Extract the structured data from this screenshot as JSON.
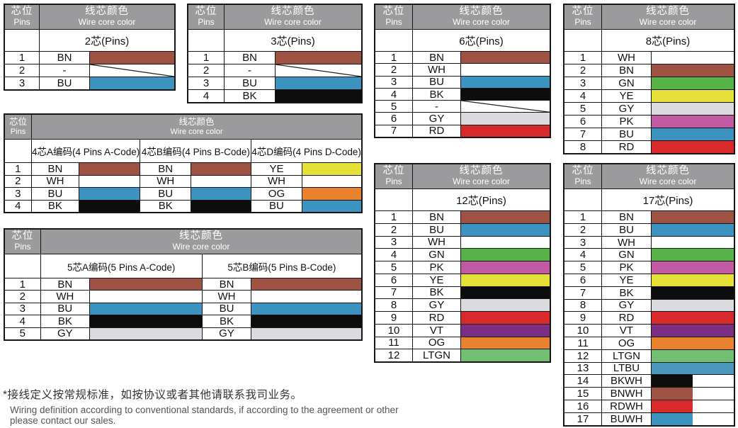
{
  "labels": {
    "pins_zh": "芯位",
    "pins_en": "Pins",
    "color_zh": "线芯颜色",
    "color_en": "Wire core color"
  },
  "palette": {
    "BN": "#9E5244",
    "WH": "#FFFFFF",
    "BU": "#3D93BF",
    "BK": "#0D0D0D",
    "GY": "#DBDADF",
    "RD": "#D8292B",
    "GN": "#57B247",
    "YE": "#E5E139",
    "PK": "#C159A3",
    "VT": "#7B2E82",
    "OG": "#E8822F",
    "LTGN": "#72BE72",
    "LTBU": "#4C98BC",
    "header_gray": "#9B9A9C",
    "border": "#161616"
  },
  "tables": [
    {
      "id": "2pin",
      "subheader": "2芯(Pins)",
      "rows": [
        {
          "pin": "1",
          "code": "BN",
          "swatch": "BN"
        },
        {
          "pin": "2",
          "code": "-",
          "swatch": "diagonal"
        },
        {
          "pin": "3",
          "code": "BU",
          "swatch": "BU"
        }
      ]
    },
    {
      "id": "3pin",
      "subheader": "3芯(Pins)",
      "rows": [
        {
          "pin": "1",
          "code": "BN",
          "swatch": "BN"
        },
        {
          "pin": "2",
          "code": "-",
          "swatch": "diagonal"
        },
        {
          "pin": "3",
          "code": "BU",
          "swatch": "BU"
        },
        {
          "pin": "4",
          "code": "BK",
          "swatch": "BK"
        }
      ]
    },
    {
      "id": "6pin",
      "subheader": "6芯(Pins)",
      "rows": [
        {
          "pin": "1",
          "code": "BN",
          "swatch": "BN"
        },
        {
          "pin": "2",
          "code": "WH",
          "swatch": "WH"
        },
        {
          "pin": "3",
          "code": "BU",
          "swatch": "BU"
        },
        {
          "pin": "4",
          "code": "BK",
          "swatch": "BK"
        },
        {
          "pin": "5",
          "code": "-",
          "swatch": "diagonal"
        },
        {
          "pin": "6",
          "code": "GY",
          "swatch": "GY"
        },
        {
          "pin": "7",
          "code": "RD",
          "swatch": "RD"
        }
      ]
    },
    {
      "id": "8pin",
      "subheader": "8芯(Pins)",
      "rows": [
        {
          "pin": "1",
          "code": "WH",
          "swatch": "WH"
        },
        {
          "pin": "2",
          "code": "BN",
          "swatch": "BN"
        },
        {
          "pin": "3",
          "code": "GN",
          "swatch": "GN"
        },
        {
          "pin": "4",
          "code": "YE",
          "swatch": "YE"
        },
        {
          "pin": "5",
          "code": "GY",
          "swatch": "GY"
        },
        {
          "pin": "6",
          "code": "PK",
          "swatch": "PK"
        },
        {
          "pin": "7",
          "code": "BU",
          "swatch": "BU"
        },
        {
          "pin": "8",
          "code": "RD",
          "swatch": "RD"
        }
      ]
    },
    {
      "id": "4pin",
      "pins": [
        "1",
        "2",
        "3",
        "4"
      ],
      "groups": [
        {
          "label": "4芯A编码(4 Pins A-Code)",
          "rows": [
            {
              "code": "BN",
              "swatch": "BN"
            },
            {
              "code": "WH",
              "swatch": "WH"
            },
            {
              "code": "BU",
              "swatch": "BU"
            },
            {
              "code": "BK",
              "swatch": "BK"
            }
          ]
        },
        {
          "label": "4芯B编码(4 Pins B-Code)",
          "rows": [
            {
              "code": "BN",
              "swatch": "BN"
            },
            {
              "code": "WH",
              "swatch": "WH"
            },
            {
              "code": "BU",
              "swatch": "BU"
            },
            {
              "code": "BK",
              "swatch": "BK"
            }
          ]
        },
        {
          "label": "4芯D编码(4 Pins D-Code)",
          "rows": [
            {
              "code": "YE",
              "swatch": "YE"
            },
            {
              "code": "WH",
              "swatch": "WH"
            },
            {
              "code": "OG",
              "swatch": "OG"
            },
            {
              "code": "BU",
              "swatch": "BU"
            }
          ]
        }
      ]
    },
    {
      "id": "5pin",
      "pins": [
        "1",
        "2",
        "3",
        "4",
        "5"
      ],
      "groups": [
        {
          "label": "5芯A编码(5 Pins A-Code)",
          "rows": [
            {
              "code": "BN",
              "swatch": "BN"
            },
            {
              "code": "WH",
              "swatch": "WH"
            },
            {
              "code": "BU",
              "swatch": "BU"
            },
            {
              "code": "BK",
              "swatch": "BK"
            },
            {
              "code": "GY",
              "swatch": "GY"
            }
          ]
        },
        {
          "label": "5芯B编码(5 Pins B-Code)",
          "rows": [
            {
              "code": "BN",
              "swatch": "BN"
            },
            {
              "code": "WH",
              "swatch": "WH"
            },
            {
              "code": "BU",
              "swatch": "BU"
            },
            {
              "code": "BK",
              "swatch": "BK"
            },
            {
              "code": "GY",
              "swatch": "GY"
            }
          ]
        }
      ]
    },
    {
      "id": "12pin",
      "subheader": "12芯(Pins)",
      "rows": [
        {
          "pin": "1",
          "code": "BN",
          "swatch": "BN"
        },
        {
          "pin": "2",
          "code": "BU",
          "swatch": "BU"
        },
        {
          "pin": "3",
          "code": "WH",
          "swatch": "WH"
        },
        {
          "pin": "4",
          "code": "GN",
          "swatch": "GN"
        },
        {
          "pin": "5",
          "code": "PK",
          "swatch": "PK"
        },
        {
          "pin": "6",
          "code": "YE",
          "swatch": "YE"
        },
        {
          "pin": "7",
          "code": "BK",
          "swatch": "BK"
        },
        {
          "pin": "8",
          "code": "GY",
          "swatch": "GY"
        },
        {
          "pin": "9",
          "code": "RD",
          "swatch": "RD"
        },
        {
          "pin": "10",
          "code": "VT",
          "swatch": "VT"
        },
        {
          "pin": "11",
          "code": "OG",
          "swatch": "OG"
        },
        {
          "pin": "12",
          "code": "LTGN",
          "swatch": "LTGN"
        }
      ]
    },
    {
      "id": "17pin",
      "subheader": "17芯(Pins)",
      "rows": [
        {
          "pin": "1",
          "code": "BN",
          "swatch": "BN"
        },
        {
          "pin": "2",
          "code": "BU",
          "swatch": "BU"
        },
        {
          "pin": "3",
          "code": "WH",
          "swatch": "WH"
        },
        {
          "pin": "4",
          "code": "GN",
          "swatch": "GN"
        },
        {
          "pin": "5",
          "code": "PK",
          "swatch": "PK"
        },
        {
          "pin": "6",
          "code": "YE",
          "swatch": "YE"
        },
        {
          "pin": "7",
          "code": "BK",
          "swatch": "BK"
        },
        {
          "pin": "8",
          "code": "GY",
          "swatch": "GY"
        },
        {
          "pin": "9",
          "code": "RD",
          "swatch": "RD"
        },
        {
          "pin": "10",
          "code": "VT",
          "swatch": "VT"
        },
        {
          "pin": "11",
          "code": "OG",
          "swatch": "OG"
        },
        {
          "pin": "12",
          "code": "LTGN",
          "swatch": "LTGN"
        },
        {
          "pin": "13",
          "code": "LTBU",
          "swatch": "LTBU"
        },
        {
          "pin": "14",
          "code": "BKWH",
          "swatch": "half:BK"
        },
        {
          "pin": "15",
          "code": "BNWH",
          "swatch": "half:BN"
        },
        {
          "pin": "16",
          "code": "RDWH",
          "swatch": "half:RD"
        },
        {
          "pin": "17",
          "code": "BUWH",
          "swatch": "half:BU"
        }
      ]
    }
  ],
  "footer": {
    "zh": "*接线定义按常规标准，如按协议或者其他请联系我司业务。",
    "en": "Wiring definition according to conventional standards, if according to the agreement or other please contact our sales."
  }
}
